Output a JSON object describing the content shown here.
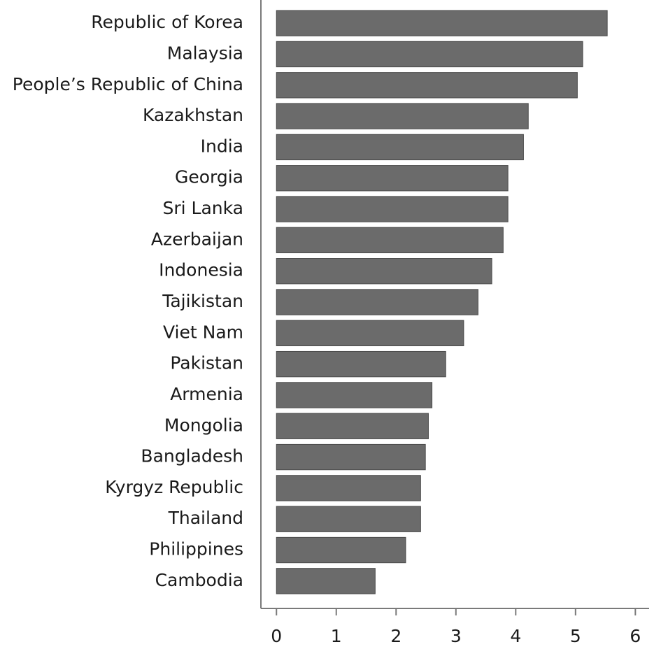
{
  "chart_data": {
    "type": "barh",
    "categories": [
      "Republic of Korea",
      "Malaysia",
      "People’s Republic of China",
      "Kazakhstan",
      "India",
      "Georgia",
      "Sri Lanka",
      "Azerbaijan",
      "Indonesia",
      "Tajikistan",
      "Viet Nam",
      "Pakistan",
      "Armenia",
      "Mongolia",
      "Bangladesh",
      "Kyrgyz Republic",
      "Thailand",
      "Philippines",
      "Cambodia"
    ],
    "values": [
      5.53,
      5.12,
      5.03,
      4.21,
      4.13,
      3.87,
      3.87,
      3.79,
      3.6,
      3.37,
      3.13,
      2.83,
      2.6,
      2.54,
      2.49,
      2.41,
      2.41,
      2.16,
      1.65
    ],
    "color": "#6b6b6b",
    "xlim": [
      -0.26,
      6.23
    ],
    "xticks": [
      0,
      1,
      2,
      3,
      4,
      5,
      6
    ]
  }
}
